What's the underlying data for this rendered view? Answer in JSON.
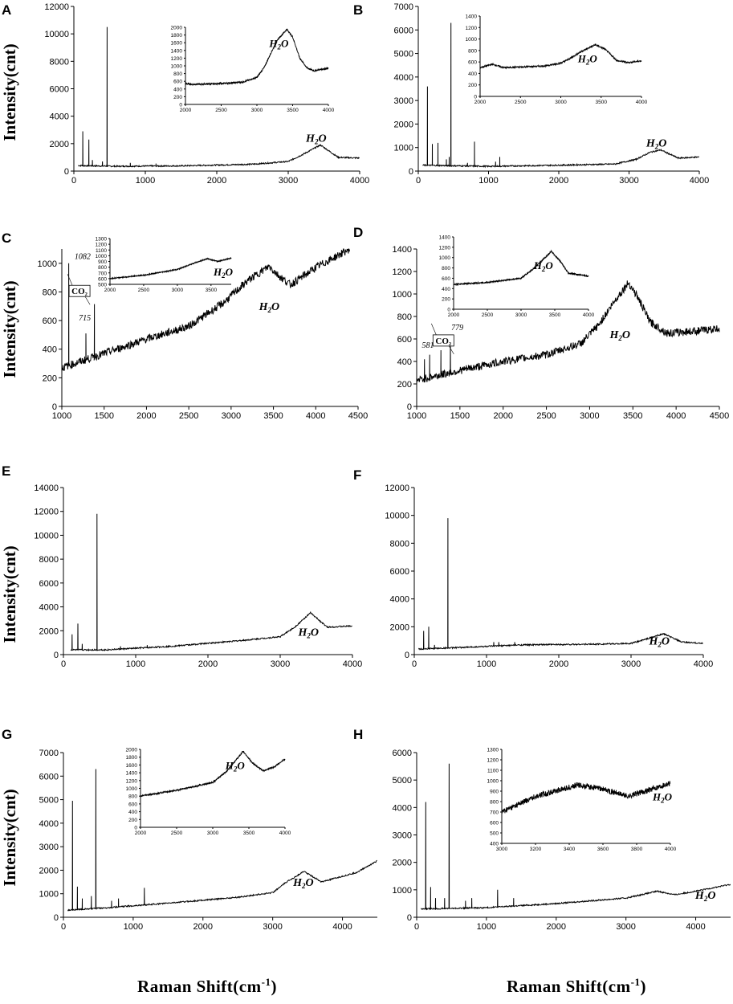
{
  "figure": {
    "y_axis_label": "Intensity(cnt)",
    "x_axis_label": "Raman Shift(cm",
    "x_axis_label_sup": "-1",
    "x_axis_label_close": ")"
  },
  "chart_data": [
    {
      "panel": "A",
      "type": "line",
      "xlim": [
        0,
        4000
      ],
      "ylim": [
        0,
        12000
      ],
      "xticks": [
        0,
        1000,
        2000,
        3000,
        4000
      ],
      "yticks": [
        0,
        2000,
        4000,
        6000,
        8000,
        10000,
        12000
      ],
      "ylabel": "Intensity(cnt)",
      "baseline": [
        [
          60,
          400
        ],
        [
          600,
          350
        ],
        [
          1500,
          380
        ],
        [
          2500,
          500
        ],
        [
          3000,
          700
        ],
        [
          3200,
          1200
        ],
        [
          3450,
          1900
        ],
        [
          3700,
          1000
        ],
        [
          4000,
          950
        ]
      ],
      "peaks": [
        [
          125,
          2900
        ],
        [
          210,
          2300
        ],
        [
          260,
          800
        ],
        [
          400,
          700
        ],
        [
          465,
          10500
        ],
        [
          700,
          400
        ],
        [
          790,
          600
        ],
        [
          1090,
          400
        ],
        [
          1150,
          550
        ]
      ],
      "annotations": [
        {
          "text": "H",
          "sub": "2",
          "tail": "O",
          "x": 3450,
          "y": 1900
        }
      ],
      "inset": {
        "xlim": [
          2000,
          4000
        ],
        "ylim": [
          0,
          2000
        ],
        "xticks": [
          2000,
          2500,
          3000,
          3500,
          4000
        ],
        "yticks": [
          0,
          200,
          400,
          600,
          800,
          1000,
          1200,
          1400,
          1600,
          1800,
          2000
        ],
        "curve": [
          [
            2000,
            540
          ],
          [
            2100,
            520
          ],
          [
            2500,
            540
          ],
          [
            2800,
            580
          ],
          [
            3000,
            700
          ],
          [
            3100,
            950
          ],
          [
            3200,
            1350
          ],
          [
            3300,
            1700
          ],
          [
            3420,
            1950
          ],
          [
            3500,
            1750
          ],
          [
            3600,
            1200
          ],
          [
            3700,
            950
          ],
          [
            3800,
            870
          ],
          [
            3900,
            910
          ],
          [
            4000,
            940
          ]
        ],
        "label": {
          "text": "H",
          "sub": "2",
          "tail": "O"
        }
      }
    },
    {
      "panel": "B",
      "type": "line",
      "xlim": [
        0,
        4000
      ],
      "ylim": [
        0,
        7000
      ],
      "xticks": [
        0,
        1000,
        2000,
        3000,
        4000
      ],
      "yticks": [
        0,
        1000,
        2000,
        3000,
        4000,
        5000,
        6000,
        7000
      ],
      "baseline": [
        [
          60,
          250
        ],
        [
          1000,
          200
        ],
        [
          2000,
          250
        ],
        [
          2800,
          300
        ],
        [
          3100,
          500
        ],
        [
          3300,
          800
        ],
        [
          3450,
          900
        ],
        [
          3700,
          550
        ],
        [
          4000,
          600
        ]
      ],
      "peaks": [
        [
          130,
          3600
        ],
        [
          200,
          1150
        ],
        [
          280,
          1200
        ],
        [
          400,
          500
        ],
        [
          440,
          600
        ],
        [
          465,
          6300
        ],
        [
          700,
          350
        ],
        [
          800,
          1250
        ],
        [
          1100,
          400
        ],
        [
          1160,
          600
        ]
      ],
      "annotations": [
        {
          "text": "H",
          "sub": "2",
          "tail": "O",
          "x": 3450,
          "y": 900
        }
      ],
      "inset": {
        "xlim": [
          2000,
          4000
        ],
        "ylim": [
          0,
          1400
        ],
        "xticks": [
          2000,
          2500,
          3000,
          3500,
          4000
        ],
        "yticks": [
          0,
          200,
          400,
          600,
          800,
          1000,
          1200,
          1400
        ],
        "curve": [
          [
            2000,
            500
          ],
          [
            2150,
            560
          ],
          [
            2300,
            500
          ],
          [
            2800,
            530
          ],
          [
            3000,
            580
          ],
          [
            3100,
            650
          ],
          [
            3250,
            780
          ],
          [
            3430,
            900
          ],
          [
            3550,
            820
          ],
          [
            3700,
            620
          ],
          [
            3850,
            590
          ],
          [
            4000,
            620
          ]
        ],
        "label": {
          "text": "H",
          "sub": "2",
          "tail": "O"
        }
      }
    },
    {
      "panel": "C",
      "type": "line",
      "xlim": [
        1000,
        4500
      ],
      "ylim": [
        0,
        1100
      ],
      "xticks": [
        1000,
        1500,
        2000,
        2500,
        3000,
        3500,
        4000,
        4500
      ],
      "yticks": [
        0,
        200,
        400,
        600,
        800,
        1000
      ],
      "ylabel": "Intensity(cnt)",
      "baseline": [
        [
          1000,
          270
        ],
        [
          1500,
          370
        ],
        [
          2000,
          470
        ],
        [
          2500,
          560
        ],
        [
          2900,
          720
        ],
        [
          3200,
          880
        ],
        [
          3450,
          980
        ],
        [
          3550,
          920
        ],
        [
          3700,
          850
        ],
        [
          4000,
          970
        ],
        [
          4400,
          1100
        ]
      ],
      "peaks": [
        [
          1082,
          1000
        ],
        [
          1285,
          510
        ],
        [
          1385,
          715
        ]
      ],
      "annotations": [
        {
          "text": "H",
          "sub": "2",
          "tail": "O",
          "x": 3500,
          "y": 650
        },
        {
          "text": "1082",
          "x": 1150,
          "y": 1030
        },
        {
          "text": "715",
          "x": 1200,
          "y": 600
        }
      ],
      "co2_label": "CO₂",
      "inset": {
        "xlim": [
          2000,
          3800
        ],
        "ylim": [
          500,
          1300
        ],
        "xticks": [
          2000,
          2500,
          3000,
          3500
        ],
        "yticks": [
          500,
          600,
          700,
          800,
          900,
          1000,
          1100,
          1200,
          1300
        ],
        "curve": [
          [
            2000,
            600
          ],
          [
            2500,
            660
          ],
          [
            3000,
            760
          ],
          [
            3200,
            850
          ],
          [
            3450,
            950
          ],
          [
            3600,
            900
          ],
          [
            3800,
            960
          ]
        ],
        "label": {
          "text": "H",
          "sub": "2",
          "tail": "O"
        }
      }
    },
    {
      "panel": "D",
      "type": "line",
      "xlim": [
        1000,
        4500
      ],
      "ylim": [
        0,
        1400
      ],
      "xticks": [
        1000,
        1500,
        2000,
        2500,
        3000,
        3500,
        4000,
        4500
      ],
      "yticks": [
        0,
        200,
        400,
        600,
        800,
        1000,
        1200,
        1400
      ],
      "baseline": [
        [
          1000,
          230
        ],
        [
          1500,
          320
        ],
        [
          2000,
          400
        ],
        [
          2500,
          460
        ],
        [
          2900,
          560
        ],
        [
          3100,
          720
        ],
        [
          3300,
          950
        ],
        [
          3450,
          1100
        ],
        [
          3550,
          980
        ],
        [
          3700,
          750
        ],
        [
          3900,
          650
        ],
        [
          4500,
          690
        ]
      ],
      "peaks": [
        [
          1090,
          420
        ],
        [
          1150,
          460
        ],
        [
          1280,
          500
        ],
        [
          1390,
          560
        ]
      ],
      "annotations": [
        {
          "text": "H",
          "sub": "2",
          "tail": "O",
          "x": 3400,
          "y": 580
        },
        {
          "text": "581",
          "x": 1060,
          "y": 520
        },
        {
          "text": "779",
          "x": 1400,
          "y": 680
        }
      ],
      "co2_label": "CO₂",
      "inset": {
        "xlim": [
          2000,
          4000
        ],
        "ylim": [
          0,
          1400
        ],
        "xticks": [
          2000,
          2500,
          3000,
          3500,
          4000
        ],
        "yticks": [
          0,
          200,
          400,
          600,
          800,
          1000,
          1200,
          1400
        ],
        "curve": [
          [
            2000,
            480
          ],
          [
            2500,
            520
          ],
          [
            3000,
            600
          ],
          [
            3200,
            800
          ],
          [
            3450,
            1120
          ],
          [
            3600,
            900
          ],
          [
            3700,
            700
          ],
          [
            4000,
            640
          ]
        ],
        "label": {
          "text": "H",
          "sub": "2",
          "tail": "O"
        }
      }
    },
    {
      "panel": "E",
      "type": "line",
      "xlim": [
        0,
        4000
      ],
      "ylim": [
        0,
        14000
      ],
      "xticks": [
        0,
        1000,
        2000,
        3000,
        4000
      ],
      "yticks": [
        0,
        2000,
        4000,
        6000,
        8000,
        10000,
        12000,
        14000
      ],
      "ylabel": "Intensity(cnt)",
      "baseline": [
        [
          100,
          400
        ],
        [
          600,
          400
        ],
        [
          1500,
          700
        ],
        [
          2500,
          1200
        ],
        [
          3000,
          1500
        ],
        [
          3200,
          2300
        ],
        [
          3420,
          3500
        ],
        [
          3650,
          2300
        ],
        [
          4000,
          2400
        ]
      ],
      "peaks": [
        [
          120,
          1700
        ],
        [
          200,
          2600
        ],
        [
          260,
          900
        ],
        [
          465,
          11800
        ],
        [
          790,
          700
        ],
        [
          1160,
          800
        ]
      ],
      "annotations": [
        {
          "text": "H",
          "sub": "2",
          "tail": "O",
          "x": 3450,
          "y": 1300
        }
      ]
    },
    {
      "panel": "F",
      "type": "line",
      "xlim": [
        0,
        4000
      ],
      "ylim": [
        0,
        12000
      ],
      "xticks": [
        0,
        1000,
        2000,
        3000,
        4000
      ],
      "yticks": [
        0,
        2000,
        4000,
        6000,
        8000,
        10000,
        12000
      ],
      "baseline": [
        [
          60,
          400
        ],
        [
          600,
          500
        ],
        [
          1500,
          700
        ],
        [
          2500,
          750
        ],
        [
          3000,
          800
        ],
        [
          3200,
          1100
        ],
        [
          3450,
          1500
        ],
        [
          3700,
          900
        ],
        [
          4000,
          800
        ]
      ],
      "peaks": [
        [
          130,
          1700
        ],
        [
          200,
          2000
        ],
        [
          280,
          700
        ],
        [
          465,
          9800
        ],
        [
          1100,
          900
        ],
        [
          1170,
          900
        ],
        [
          1390,
          900
        ]
      ],
      "annotations": [
        {
          "text": "H",
          "sub": "2",
          "tail": "O",
          "x": 3450,
          "y": 500
        }
      ]
    },
    {
      "panel": "G",
      "type": "line",
      "xlim": [
        0,
        4500
      ],
      "ylim": [
        0,
        7000
      ],
      "xticks": [
        0,
        1000,
        2000,
        3000,
        4000
      ],
      "yticks": [
        0,
        1000,
        2000,
        3000,
        4000,
        5000,
        6000,
        7000
      ],
      "ylabel": "Intensity(cnt)",
      "baseline": [
        [
          60,
          300
        ],
        [
          600,
          400
        ],
        [
          1500,
          600
        ],
        [
          2500,
          850
        ],
        [
          3000,
          1050
        ],
        [
          3200,
          1500
        ],
        [
          3450,
          1950
        ],
        [
          3700,
          1500
        ],
        [
          4200,
          1900
        ],
        [
          4500,
          2400
        ]
      ],
      "peaks": [
        [
          130,
          4950
        ],
        [
          200,
          1300
        ],
        [
          270,
          800
        ],
        [
          400,
          900
        ],
        [
          465,
          6300
        ],
        [
          690,
          700
        ],
        [
          790,
          800
        ],
        [
          1160,
          1250
        ]
      ],
      "annotations": [
        {
          "text": "H",
          "sub": "2",
          "tail": "O",
          "x": 3500,
          "y": 1200
        }
      ],
      "inset": {
        "xlim": [
          2000,
          4000
        ],
        "ylim": [
          0,
          2000
        ],
        "xticks": [
          2000,
          2500,
          3000,
          3500,
          4000
        ],
        "yticks": [
          0,
          200,
          400,
          600,
          800,
          1000,
          1200,
          1400,
          1600,
          1800,
          2000
        ],
        "curve": [
          [
            2000,
            800
          ],
          [
            2500,
            950
          ],
          [
            3000,
            1150
          ],
          [
            3200,
            1450
          ],
          [
            3420,
            1950
          ],
          [
            3550,
            1650
          ],
          [
            3700,
            1450
          ],
          [
            3850,
            1550
          ],
          [
            4000,
            1750
          ]
        ],
        "label": {
          "text": "H",
          "sub": "2",
          "tail": "O"
        }
      }
    },
    {
      "panel": "H",
      "type": "line",
      "xlim": [
        0,
        4500
      ],
      "ylim": [
        0,
        6000
      ],
      "xticks": [
        0,
        1000,
        2000,
        3000,
        4000
      ],
      "yticks": [
        0,
        1000,
        2000,
        3000,
        4000,
        5000,
        6000
      ],
      "baseline": [
        [
          60,
          300
        ],
        [
          1000,
          350
        ],
        [
          2000,
          500
        ],
        [
          3000,
          700
        ],
        [
          3450,
          950
        ],
        [
          3700,
          820
        ],
        [
          4000,
          950
        ],
        [
          4500,
          1200
        ]
      ],
      "peaks": [
        [
          130,
          4200
        ],
        [
          200,
          1100
        ],
        [
          270,
          700
        ],
        [
          400,
          700
        ],
        [
          465,
          5600
        ],
        [
          700,
          600
        ],
        [
          790,
          700
        ],
        [
          1160,
          1000
        ],
        [
          1390,
          700
        ]
      ],
      "annotations": [
        {
          "text": "H",
          "sub": "2",
          "tail": "O",
          "x": 4200,
          "y": 550
        }
      ],
      "inset": {
        "xlim": [
          3000,
          4000
        ],
        "ylim": [
          400,
          1300
        ],
        "xticks": [
          3000,
          3200,
          3400,
          3600,
          3800,
          4000
        ],
        "yticks": [
          400,
          500,
          600,
          700,
          800,
          900,
          1000,
          1100,
          1200,
          1300
        ],
        "curve": [
          [
            3000,
            700
          ],
          [
            3200,
            850
          ],
          [
            3450,
            960
          ],
          [
            3600,
            920
          ],
          [
            3750,
            850
          ],
          [
            3850,
            900
          ],
          [
            4000,
            980
          ]
        ],
        "label": {
          "text": "H",
          "sub": "2",
          "tail": "O"
        }
      }
    }
  ]
}
